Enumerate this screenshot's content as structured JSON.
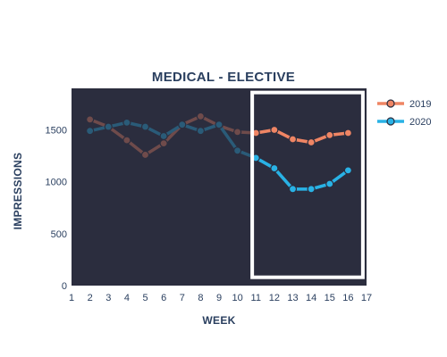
{
  "chart_data": {
    "type": "line",
    "title": "MEDICAL - ELECTIVE",
    "xlabel": "WEEK",
    "ylabel": "IMPRESSIONS",
    "xlim": [
      1,
      17
    ],
    "ylim": [
      0,
      1900
    ],
    "x_ticks": [
      1,
      2,
      3,
      4,
      5,
      6,
      7,
      8,
      9,
      10,
      11,
      12,
      13,
      14,
      15,
      16,
      17
    ],
    "y_ticks": [
      0,
      500,
      1000,
      1500
    ],
    "grid": false,
    "legend_position": "top-right",
    "plot_background": "#2b2d3e",
    "highlight_box": {
      "x_range": [
        10.8,
        16.8
      ],
      "y_range": [
        80,
        1860
      ]
    },
    "series": [
      {
        "name": "2019",
        "color": "#ef8564",
        "x": [
          2,
          3,
          4,
          5,
          6,
          7,
          8,
          9,
          10,
          11,
          12,
          13,
          14,
          15,
          16
        ],
        "y": [
          1600,
          1530,
          1400,
          1260,
          1370,
          1550,
          1630,
          1540,
          1480,
          1470,
          1500,
          1410,
          1380,
          1450,
          1470
        ]
      },
      {
        "name": "2020",
        "color": "#29b2e5",
        "x": [
          2,
          3,
          4,
          5,
          6,
          7,
          8,
          9,
          10,
          11,
          12,
          13,
          14,
          15,
          16
        ],
        "y": [
          1490,
          1530,
          1570,
          1530,
          1440,
          1550,
          1490,
          1550,
          1300,
          1230,
          1130,
          930,
          930,
          980,
          1110
        ]
      }
    ]
  }
}
